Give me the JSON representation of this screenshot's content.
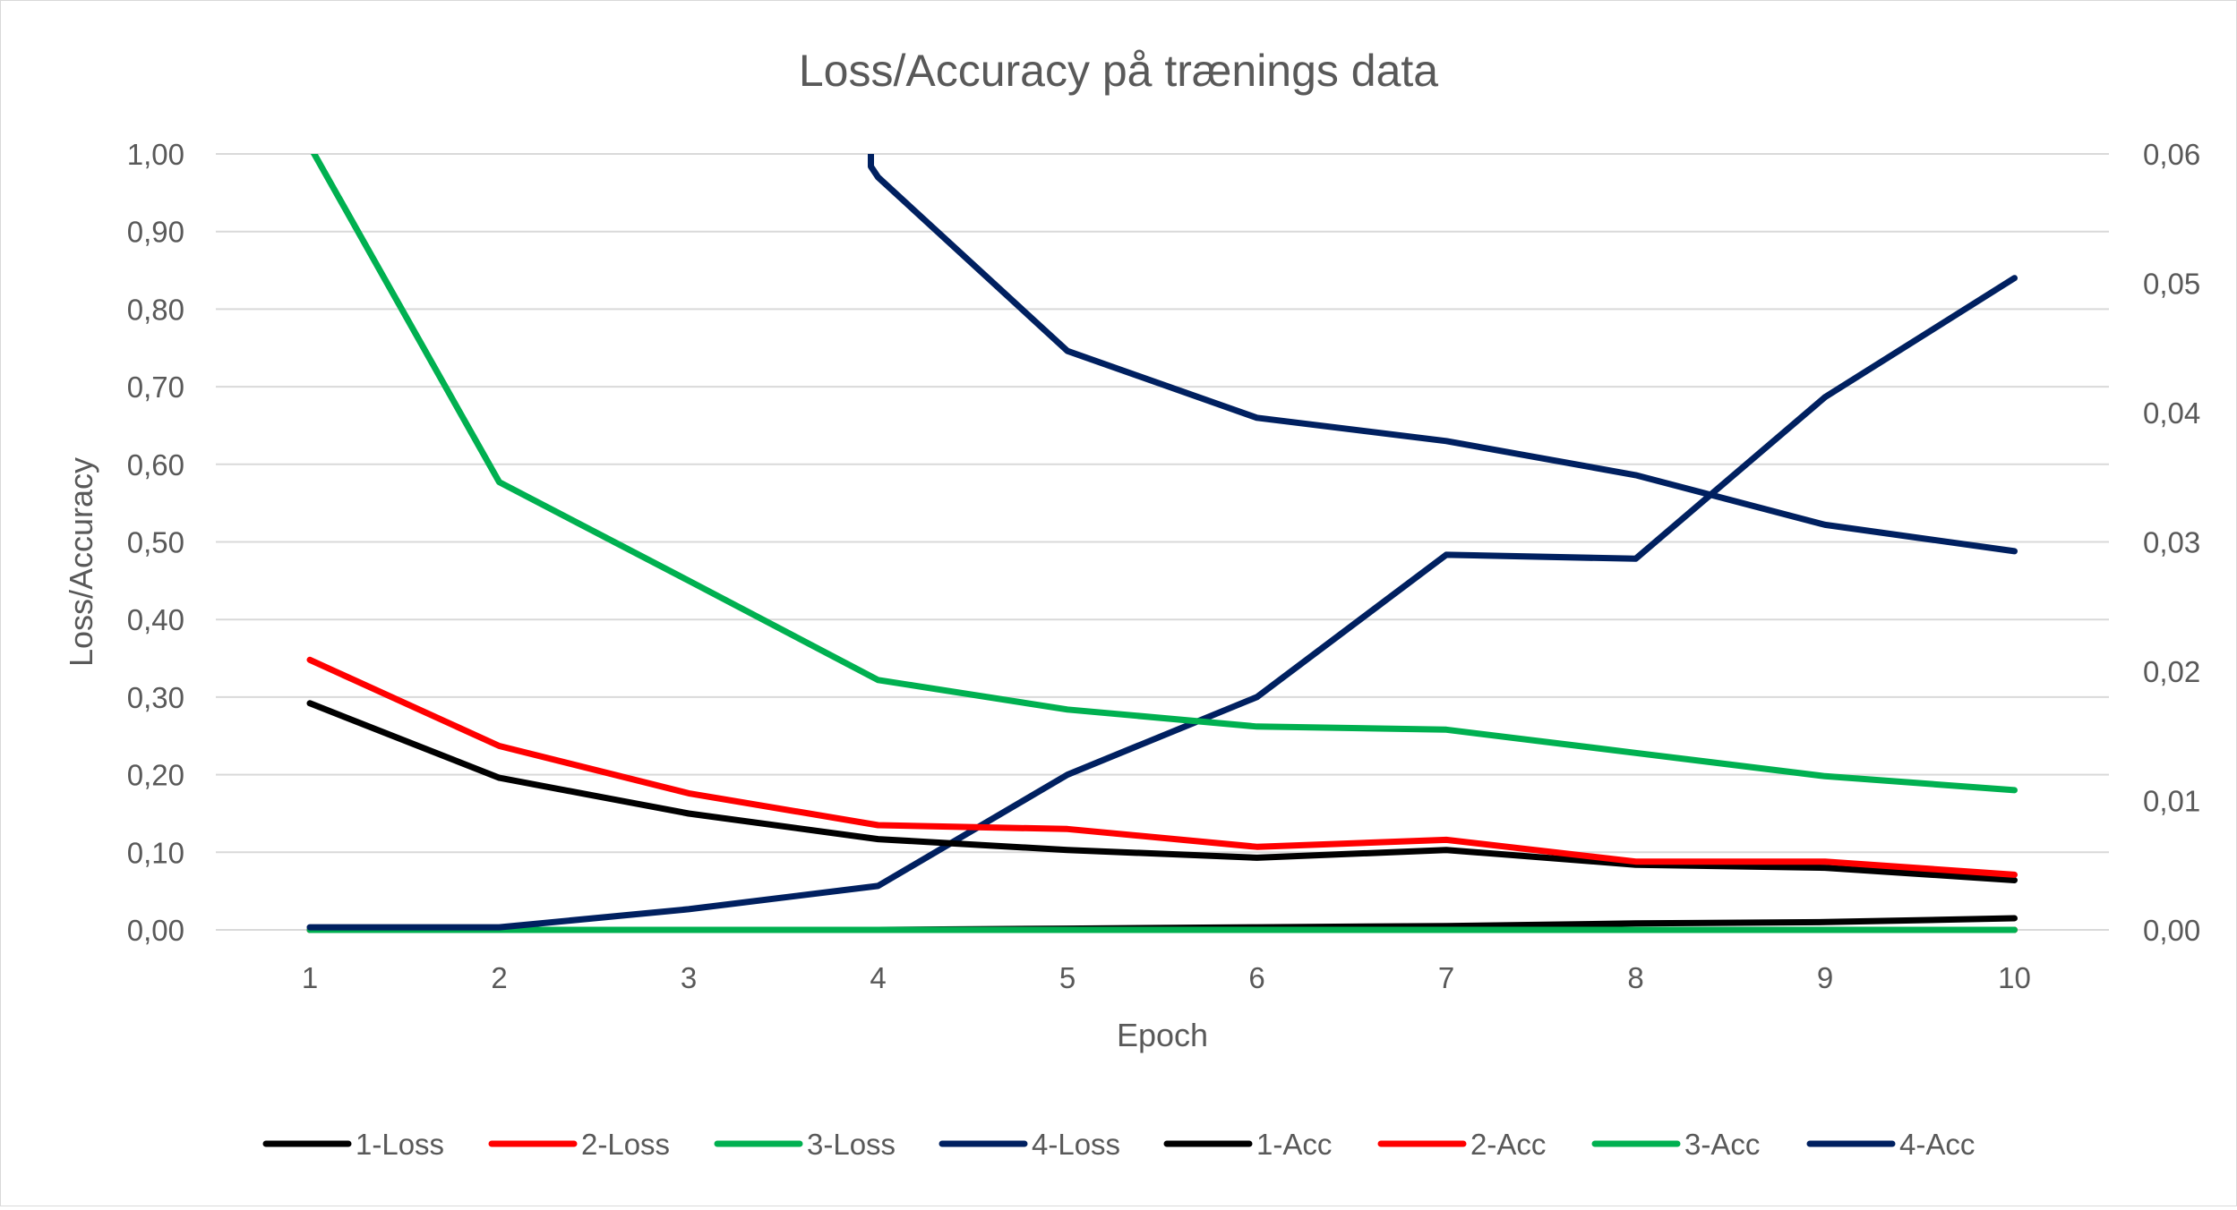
{
  "chart_data": {
    "type": "line",
    "title": "Loss/Accuracy på trænings data",
    "xlabel": "Epoch",
    "ylabel": "Loss/Accuracy",
    "y2label": "",
    "x": [
      1,
      2,
      3,
      4,
      5,
      6,
      7,
      8,
      9,
      10
    ],
    "x_tick_labels": [
      "1",
      "2",
      "3",
      "4",
      "5",
      "6",
      "7",
      "8",
      "9",
      "10"
    ],
    "ylim": [
      0,
      1.0
    ],
    "y_ticks": [
      "0,00",
      "0,10",
      "0,20",
      "0,30",
      "0,40",
      "0,50",
      "0,60",
      "0,70",
      "0,80",
      "0,90",
      "1,00"
    ],
    "y2lim": [
      0,
      0.06
    ],
    "y2_ticks": [
      "0,00",
      "0,01",
      "0,02",
      "0,03",
      "0,04",
      "0,05",
      "0,06"
    ],
    "grid": true,
    "legend_position": "bottom",
    "series": [
      {
        "name": "1-Loss",
        "axis": "left",
        "color": "#000000",
        "values": [
          0.292,
          0.196,
          0.15,
          0.117,
          0.103,
          0.093,
          0.103,
          0.084,
          0.08,
          0.064
        ]
      },
      {
        "name": "2-Loss",
        "axis": "left",
        "color": "#ff0000",
        "values": [
          0.348,
          0.237,
          0.176,
          0.135,
          0.13,
          0.107,
          0.116,
          0.088,
          0.088,
          0.071
        ]
      },
      {
        "name": "3-Loss",
        "axis": "left",
        "color": "#00b050",
        "values": [
          1.01,
          0.577,
          0.45,
          0.322,
          0.284,
          0.262,
          0.258,
          0.228,
          0.198,
          0.18
        ]
      },
      {
        "name": "4-Loss",
        "axis": "left",
        "color": "#002060",
        "values": [
          null,
          null,
          null,
          0.97,
          0.746,
          0.66,
          0.63,
          0.586,
          0.522,
          0.488
        ]
      },
      {
        "name": "1-Acc",
        "axis": "right",
        "color": "#000000",
        "values": [
          0.0,
          0.0,
          0.0,
          0.0,
          0.0001,
          0.0002,
          0.0003,
          0.0005,
          0.0006,
          0.0009
        ]
      },
      {
        "name": "2-Acc",
        "axis": "right",
        "color": "#ff0000",
        "values": [
          0.0,
          0.0,
          0.0,
          0.0,
          0.0,
          0.0,
          0.0,
          0.0,
          0.0,
          0.0
        ]
      },
      {
        "name": "3-Acc",
        "axis": "right",
        "color": "#00b050",
        "values": [
          0.0,
          0.0,
          0.0,
          0.0,
          0.0,
          0.0,
          0.0,
          0.0,
          0.0,
          0.0
        ]
      },
      {
        "name": "4-Acc",
        "axis": "right",
        "color": "#002060",
        "values": [
          0.0002,
          0.0002,
          0.0016,
          0.0034,
          0.012,
          0.018,
          0.029,
          0.0287,
          0.0412,
          0.0504
        ]
      }
    ]
  }
}
